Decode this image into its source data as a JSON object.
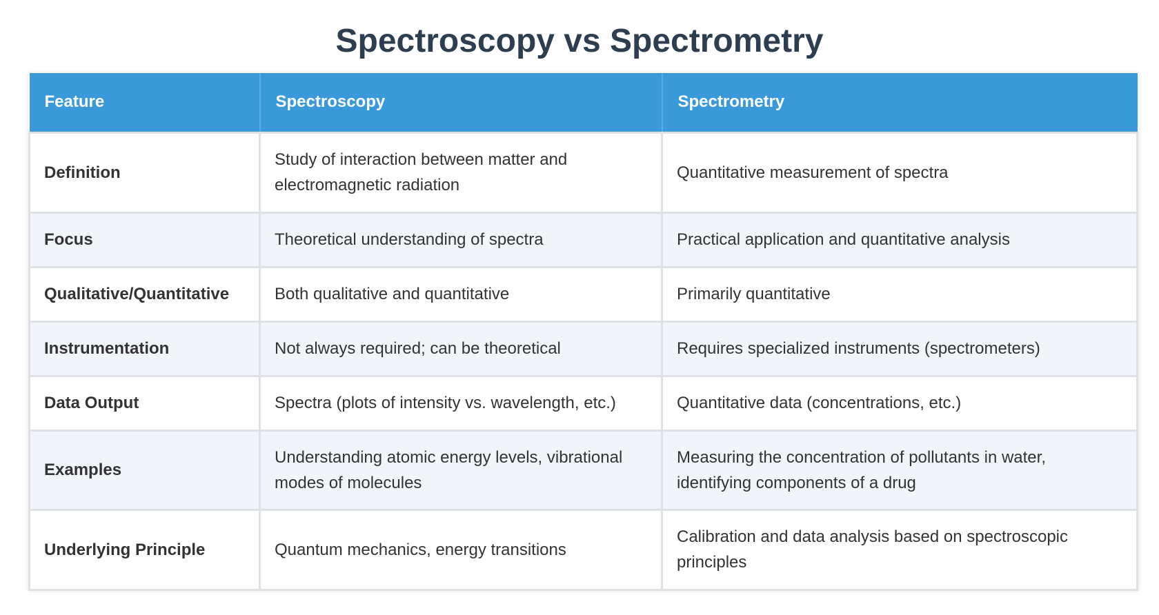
{
  "title": "Spectroscopy vs Spectrometry",
  "table": {
    "headers": [
      "Feature",
      "Spectroscopy",
      "Spectrometry"
    ],
    "rows": [
      {
        "feature": "Definition",
        "spectroscopy": "Study of interaction between matter and electromagnetic radiation",
        "spectrometry": "Quantitative measurement of spectra"
      },
      {
        "feature": "Focus",
        "spectroscopy": "Theoretical understanding of spectra",
        "spectrometry": "Practical application and quantitative analysis"
      },
      {
        "feature": "Qualitative/Quantitative",
        "spectroscopy": "Both qualitative and quantitative",
        "spectrometry": "Primarily quantitative"
      },
      {
        "feature": "Instrumentation",
        "spectroscopy": "Not always required; can be theoretical",
        "spectrometry": "Requires specialized instruments (spectrometers)"
      },
      {
        "feature": "Data Output",
        "spectroscopy": "Spectra (plots of intensity vs. wavelength, etc.)",
        "spectrometry": "Quantitative data (concentrations, etc.)"
      },
      {
        "feature": "Examples",
        "spectroscopy": "Understanding atomic energy levels, vibrational modes of molecules",
        "spectrometry": "Measuring the concentration of pollutants in water, identifying components of a drug"
      },
      {
        "feature": "Underlying Principle",
        "spectroscopy": "Quantum mechanics, energy transitions",
        "spectrometry": "Calibration and data analysis based on spectroscopic principles"
      }
    ]
  },
  "colors": {
    "header_bg": "#3a9ad9",
    "title_text": "#2c3e50",
    "even_row_bg": "#f1f4f9"
  }
}
